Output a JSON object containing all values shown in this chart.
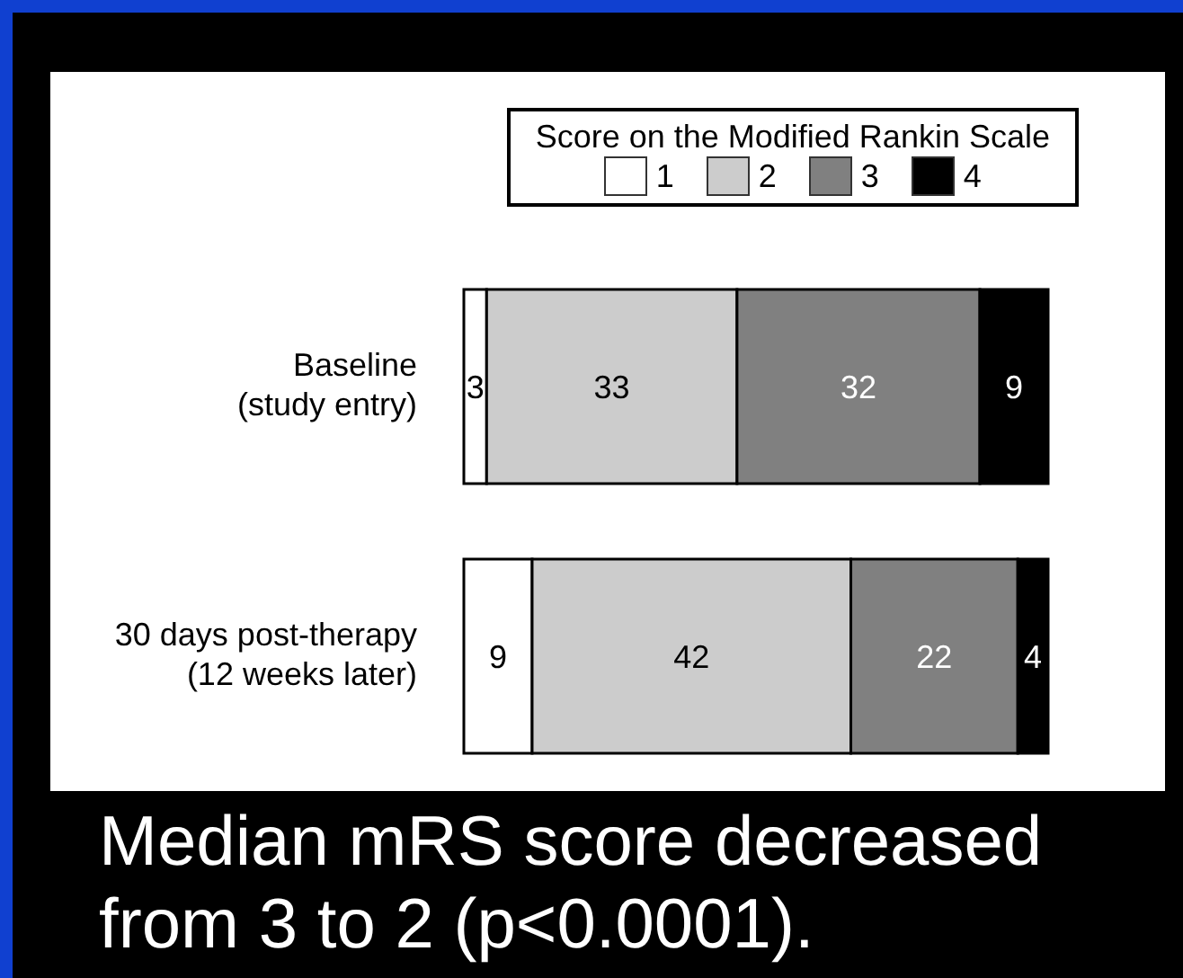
{
  "chart_data": {
    "type": "bar",
    "orientation": "horizontal",
    "stacked": true,
    "data_labels": true,
    "legend": "top right",
    "legend_title": "Score on the Modified Rankin Scale",
    "grid": false,
    "categories": [
      "Baseline\n(study entry)",
      "30 days post-therapy\n(12 weeks later)"
    ],
    "series": [
      {
        "name": "1",
        "color": "#ffffff",
        "values": [
          3,
          9
        ]
      },
      {
        "name": "2",
        "color": "#cccccc",
        "values": [
          33,
          42
        ]
      },
      {
        "name": "3",
        "color": "#808080",
        "values": [
          32,
          22
        ]
      },
      {
        "name": "4",
        "color": "#000000",
        "values": [
          9,
          4
        ]
      }
    ],
    "annotations": [
      "Median mRS score decreased from 3 to 2 (p<0.0001)."
    ]
  }
}
